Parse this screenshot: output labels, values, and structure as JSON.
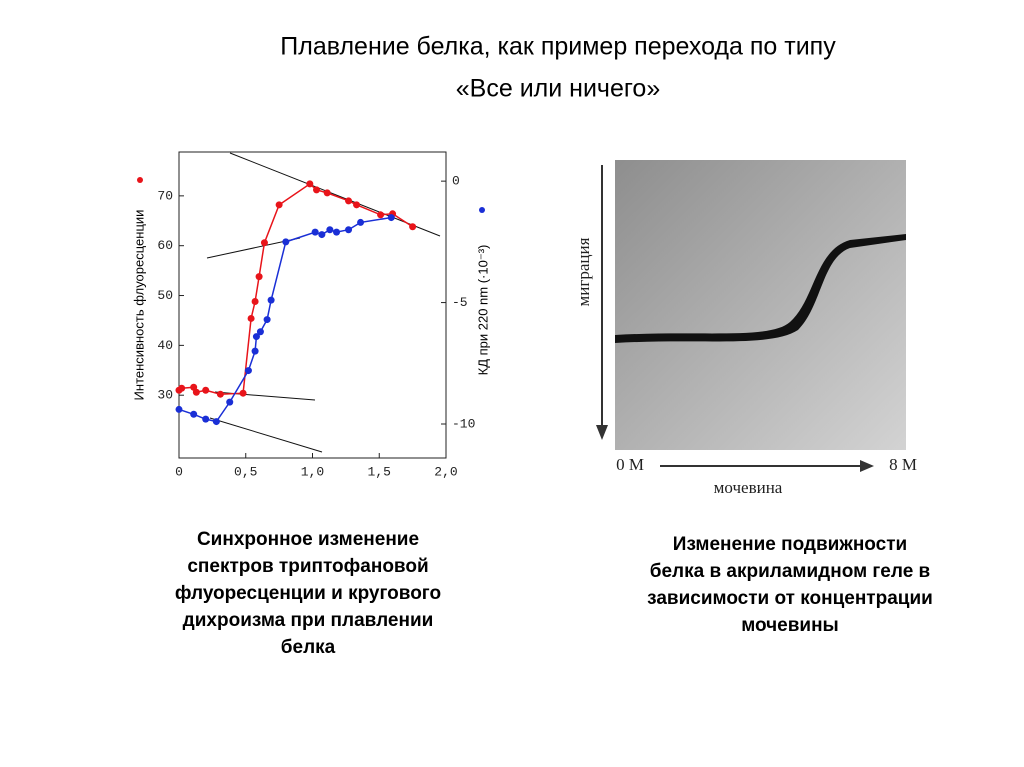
{
  "slide": {
    "title": [
      "Плавление белка, как пример перехода по типу",
      "«Все или ничего»"
    ],
    "left_caption": [
      "Синхронное изменение",
      "спектров триптофановой",
      "флуоресценции и кругового",
      "дихроизма при плавлении",
      "белка"
    ],
    "right_caption": [
      "Изменение подвижности",
      "белка в акриламидном геле в",
      "зависимости от концентрации",
      "мочевины"
    ],
    "gel": {
      "y_label": "миграция",
      "x_start": "0 M",
      "x_end": "8 M",
      "x_label": "мочевина"
    }
  },
  "chart_data": {
    "type": "scatter",
    "y_label": "Интенсивность флуоресценции",
    "y2_label": "КД при 220 nm (·10⁻³)",
    "xlim": [
      0,
      2.0
    ],
    "xticks": [
      0,
      {
        "value": 0.5,
        "label": "0,5"
      },
      {
        "value": 1.0,
        "label": "1,0"
      },
      {
        "value": 1.5,
        "label": "1,5"
      },
      {
        "value": 2.0,
        "label": "2,0"
      }
    ],
    "ylim": [
      17.4,
      78.8
    ],
    "yticks": [
      30,
      40,
      50,
      60,
      70
    ],
    "y2lim": [
      -11.4,
      1.2
    ],
    "y2ticks": [
      0,
      -5,
      -10
    ],
    "series": [
      {
        "color": "#e8141a",
        "x": [
          0,
          0.02,
          0.11,
          0.13,
          0.2,
          0.31,
          0.48,
          0.54,
          0.57,
          0.6,
          0.64,
          0.75,
          0.98,
          1.03,
          1.11,
          1.27,
          1.33,
          1.51,
          1.6,
          1.75
        ],
        "values": [
          31.0,
          31.4,
          31.6,
          30.6,
          31.0,
          30.2,
          30.4,
          45.4,
          48.8,
          53.8,
          60.6,
          68.2,
          72.4,
          71.2,
          70.6,
          69.0,
          68.2,
          66.2,
          66.4,
          63.8
        ]
      },
      {
        "color": "#1a2fd6",
        "axis": "y2",
        "x": [
          0,
          0.11,
          0.2,
          0.28,
          0.38,
          0.52,
          0.57,
          0.58,
          0.61,
          0.66,
          0.69,
          0.8,
          1.02,
          1.07,
          1.13,
          1.18,
          1.27,
          1.36,
          1.59
        ],
        "values": [
          -9.4,
          -9.6,
          -9.8,
          -9.9,
          -9.1,
          -7.8,
          -7.0,
          -6.4,
          -6.2,
          -5.7,
          -4.9,
          -2.5,
          -2.1,
          -2.2,
          -2.0,
          -2.1,
          -2.0,
          -1.7,
          -1.5
        ]
      }
    ]
  }
}
